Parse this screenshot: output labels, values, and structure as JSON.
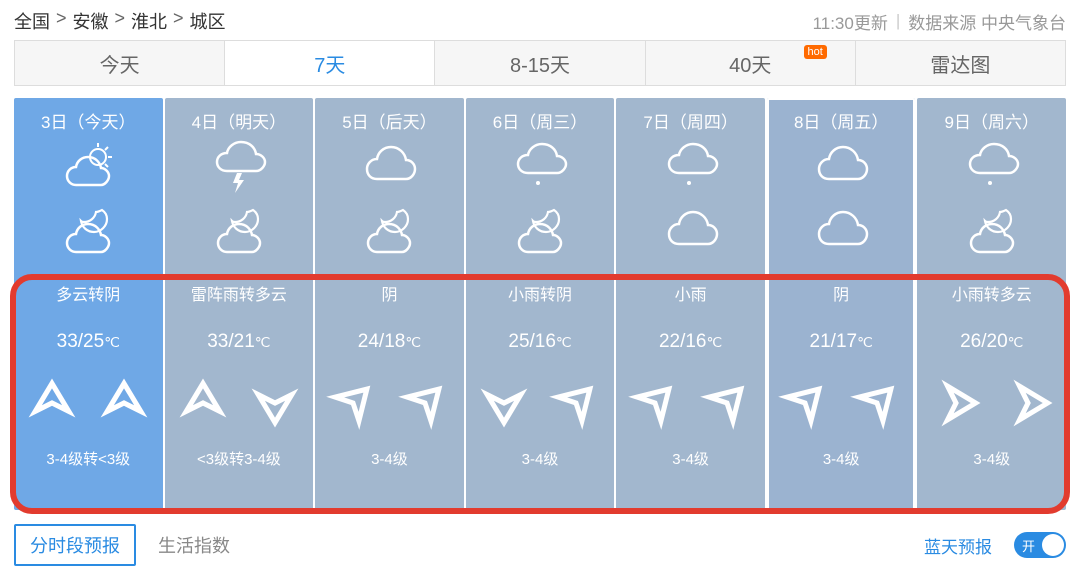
{
  "breadcrumb": [
    "全国",
    "安徽",
    "淮北",
    "城区"
  ],
  "update_text": "11:30更新",
  "source_text": "数据来源 中央气象台",
  "tabs": [
    {
      "label": "今天",
      "active": false
    },
    {
      "label": "7天",
      "active": true
    },
    {
      "label": "8-15天",
      "active": false
    },
    {
      "label": "40天",
      "active": false,
      "hot": true,
      "hot_label": "hot"
    },
    {
      "label": "雷达图",
      "active": false
    }
  ],
  "days": [
    {
      "date": "3日（今天）",
      "day_icon": "partly-cloudy",
      "night_icon": "cloudy-night",
      "cond": "多云转阴",
      "hi": "33",
      "lo": "25",
      "wind_dir1": "N",
      "wind_dir2": "N",
      "wind": "3-4级转<3级",
      "today": true,
      "highlight": false
    },
    {
      "date": "4日（明天）",
      "day_icon": "thunder",
      "night_icon": "cloudy-night",
      "cond": "雷阵雨转多云",
      "hi": "33",
      "lo": "21",
      "wind_dir1": "N",
      "wind_dir2": "S",
      "wind": "<3级转3-4级",
      "today": false,
      "highlight": false
    },
    {
      "date": "5日（后天）",
      "day_icon": "overcast",
      "night_icon": "cloudy-night",
      "cond": "阴",
      "hi": "24",
      "lo": "18",
      "wind_dir1": "NE",
      "wind_dir2": "NE",
      "wind": "3-4级",
      "today": false,
      "highlight": false
    },
    {
      "date": "6日（周三）",
      "day_icon": "light-rain",
      "night_icon": "cloudy-night",
      "cond": "小雨转阴",
      "hi": "25",
      "lo": "16",
      "wind_dir1": "S",
      "wind_dir2": "NE",
      "wind": "3-4级",
      "today": false,
      "highlight": false
    },
    {
      "date": "7日（周四）",
      "day_icon": "light-rain",
      "night_icon": "overcast",
      "cond": "小雨",
      "hi": "22",
      "lo": "16",
      "wind_dir1": "NE",
      "wind_dir2": "NE",
      "wind": "3-4级",
      "today": false,
      "highlight": false
    },
    {
      "date": "8日（周五）",
      "day_icon": "overcast",
      "night_icon": "overcast",
      "cond": "阴",
      "hi": "21",
      "lo": "17",
      "wind_dir1": "NE",
      "wind_dir2": "NE",
      "wind": "3-4级",
      "today": false,
      "highlight": true
    },
    {
      "date": "9日（周六）",
      "day_icon": "light-rain",
      "night_icon": "cloudy-night",
      "cond": "小雨转多云",
      "hi": "26",
      "lo": "20",
      "wind_dir1": "E",
      "wind_dir2": "E",
      "wind": "3-4级",
      "today": false,
      "highlight": false
    }
  ],
  "footer": {
    "seg_forecast": "分时段预报",
    "life_index": "生活指数",
    "blue_sky": "蓝天预报",
    "toggle_on": "开"
  },
  "colors": {
    "today_bg": "#6fa8e6",
    "day_bg": "#a2b7ce",
    "highlight_bg": "#9bb3d0",
    "active_tab": "#2a8be2",
    "red_box": "#e23b2e"
  }
}
